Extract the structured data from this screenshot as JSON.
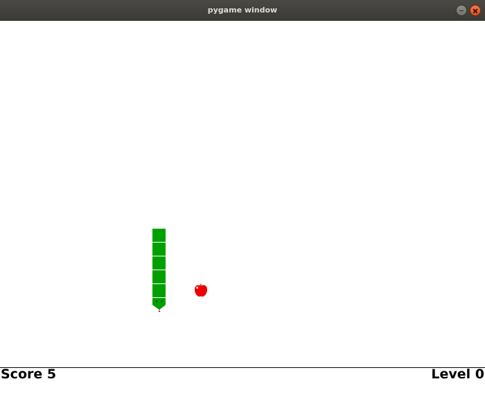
{
  "window": {
    "title": "pygame window"
  },
  "hud": {
    "score_text": "Score 5",
    "level_text": "Level 0"
  },
  "snake": {
    "color": "#00a000",
    "head_direction": "down"
  },
  "apple": {
    "color": "#ff0000",
    "icon": "apple-icon"
  }
}
